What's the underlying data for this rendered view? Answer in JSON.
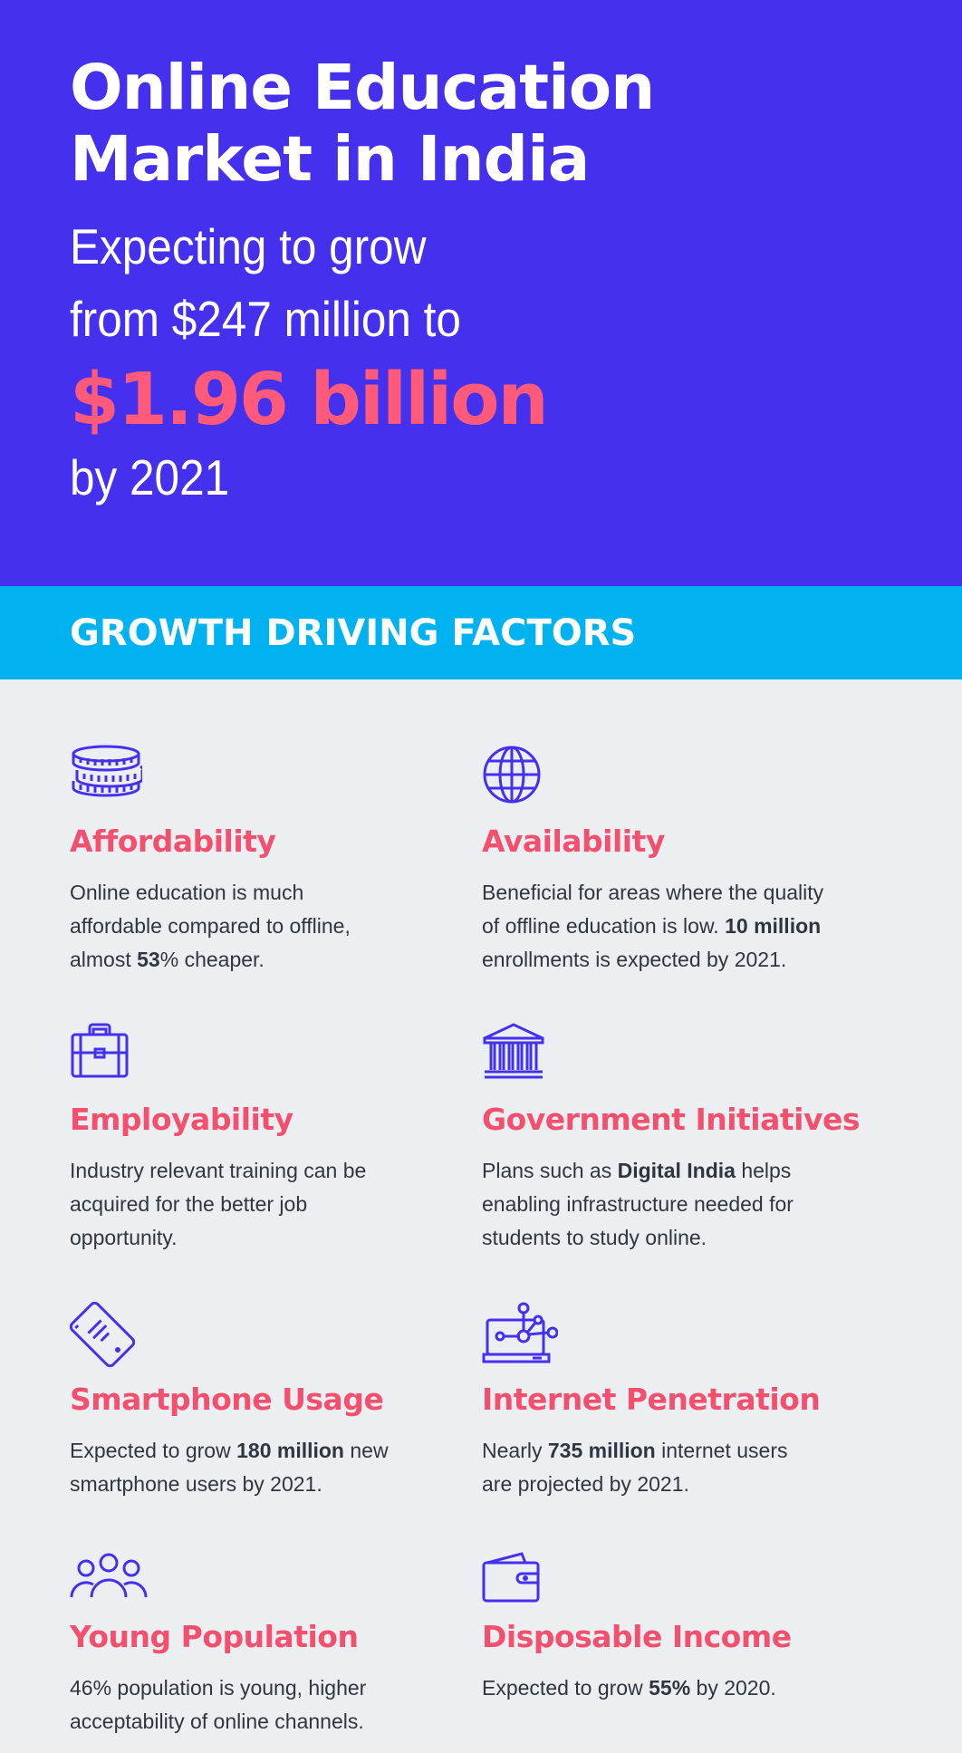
{
  "hero": {
    "title_line1": "Online Education",
    "title_line2": "Market in India",
    "line1": "Expecting to grow",
    "line2": "from $247 million to",
    "highlight": "$1.96 billion",
    "line4": "by 2021"
  },
  "section": {
    "title": "GROWTH DRIVING FACTORS"
  },
  "factors": [
    {
      "icon": "coins-icon",
      "title": "Affordability",
      "text_pre": "Online education is much affordable compared to offline, almost ",
      "bold": "53",
      "text_post": "% cheaper."
    },
    {
      "icon": "globe-icon",
      "title": "Availability",
      "text_pre": "Beneficial for areas where the quality of offline education is low. ",
      "bold": "10 million",
      "text_post": " enrollments is expected by 2021."
    },
    {
      "icon": "briefcase-icon",
      "title": "Employability",
      "text_pre": "Industry relevant training can be acquired for the better job opportunity.",
      "bold": "",
      "text_post": ""
    },
    {
      "icon": "government-building-icon",
      "title": "Government Initiatives",
      "text_pre": "Plans such as ",
      "bold": "Digital India",
      "text_post": " helps enabling infrastructure needed for students to study online."
    },
    {
      "icon": "smartphone-icon",
      "title": "Smartphone Usage",
      "text_pre": "Expected to grow ",
      "bold": "180 million",
      "text_post": " new smartphone users by 2021."
    },
    {
      "icon": "laptop-network-icon",
      "title": "Internet Penetration",
      "text_pre": "Nearly ",
      "bold": "735 million",
      "text_post": " internet users are projected by 2021."
    },
    {
      "icon": "people-group-icon",
      "title": "Young Population",
      "text_pre": "46% population is young, higher acceptability of online channels.",
      "bold": "",
      "text_post": ""
    },
    {
      "icon": "wallet-icon",
      "title": "Disposable Income",
      "text_pre": "Expected to grow ",
      "bold": "55%",
      "text_post": " by 2020."
    }
  ],
  "colors": {
    "hero_bg": "#4530ee",
    "band_bg": "#00b3f0",
    "accent": "#f2506e",
    "page_bg": "#eceff1"
  }
}
